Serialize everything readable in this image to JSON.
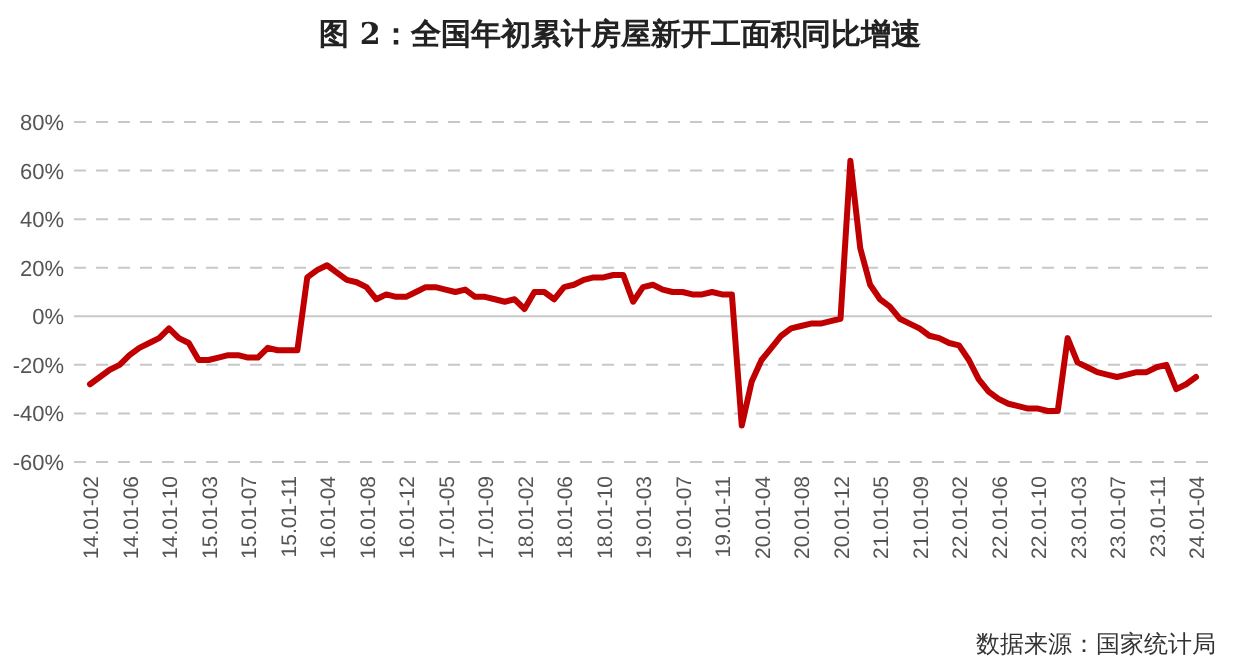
{
  "chart_data": {
    "type": "line",
    "title": "图 2：全国年初累计房屋新开工面积同比增速",
    "annotations": [
      "数据来源：国家统计局"
    ],
    "categories": [
      "14.01-02",
      null,
      null,
      null,
      "14.01-06",
      null,
      null,
      null,
      "14.01-10",
      null,
      null,
      null,
      "15.01-03",
      null,
      null,
      null,
      "15.01-07",
      null,
      null,
      null,
      "15.01-11",
      null,
      null,
      null,
      "16.01-04",
      null,
      null,
      null,
      "16.01-08",
      null,
      null,
      null,
      "16.01-12",
      null,
      null,
      null,
      "17.01-05",
      null,
      null,
      null,
      "17.01-09",
      null,
      null,
      null,
      "18.01-02",
      null,
      null,
      null,
      "18.01-06",
      null,
      null,
      null,
      "18.01-10",
      null,
      null,
      null,
      "19.01-03",
      null,
      null,
      null,
      "19.01-07",
      null,
      null,
      null,
      "19.01-11",
      null,
      null,
      null,
      "20.01-04",
      null,
      null,
      null,
      "20.01-08",
      null,
      null,
      null,
      "20.01-12",
      null,
      null,
      null,
      "21.01-05",
      null,
      null,
      null,
      "21.01-09",
      null,
      null,
      null,
      "22.01-02",
      null,
      null,
      null,
      "22.01-06",
      null,
      null,
      null,
      "22.01-10",
      null,
      null,
      null,
      "23.01-03",
      null,
      null,
      null,
      "23.01-07",
      null,
      null,
      null,
      "23.01-11",
      null,
      null,
      null,
      "24.01-04"
    ],
    "series": [
      {
        "color": "#c00000",
        "values": [
          -28,
          -25,
          -22,
          -20,
          -16,
          -13,
          -11,
          -9,
          -5,
          -9,
          -11,
          -18,
          -18,
          -17,
          -16,
          -16,
          -17,
          -17,
          -13,
          -14,
          -14,
          -14,
          16,
          19,
          21,
          18,
          15,
          14,
          12,
          7,
          9,
          8,
          8,
          10,
          12,
          12,
          11,
          10,
          11,
          8,
          8,
          7,
          6,
          7,
          3,
          10,
          10,
          7,
          12,
          13,
          15,
          16,
          16,
          17,
          17,
          6,
          12,
          13,
          11,
          10,
          10,
          9,
          9,
          10,
          9,
          9,
          -45,
          -27,
          -18,
          -13,
          -8,
          -5,
          -4,
          -3,
          -3,
          -2,
          -1,
          64,
          28,
          13,
          7,
          4,
          -1,
          -3,
          -5,
          -8,
          -9,
          -11,
          -12,
          -18,
          -26,
          -31,
          -34,
          -36,
          -37,
          -38,
          -38,
          -39,
          -39,
          -9,
          -19,
          -21,
          -23,
          -24,
          -25,
          -24,
          -23,
          -23,
          -21,
          -20,
          -30,
          -28,
          -25
        ]
      }
    ],
    "ylim": [
      -60,
      80
    ],
    "yticks": [
      {
        "value": -60,
        "label": "-60%"
      },
      {
        "value": -40,
        "label": "-40%"
      },
      {
        "value": -20,
        "label": "-20%"
      },
      {
        "value": 0,
        "label": "0%"
      },
      {
        "value": 20,
        "label": "20%"
      },
      {
        "value": 40,
        "label": "40%"
      },
      {
        "value": 60,
        "label": "60%"
      },
      {
        "value": 80,
        "label": "80%"
      }
    ],
    "grid": "y",
    "marker": "none",
    "line_style": "solid"
  }
}
